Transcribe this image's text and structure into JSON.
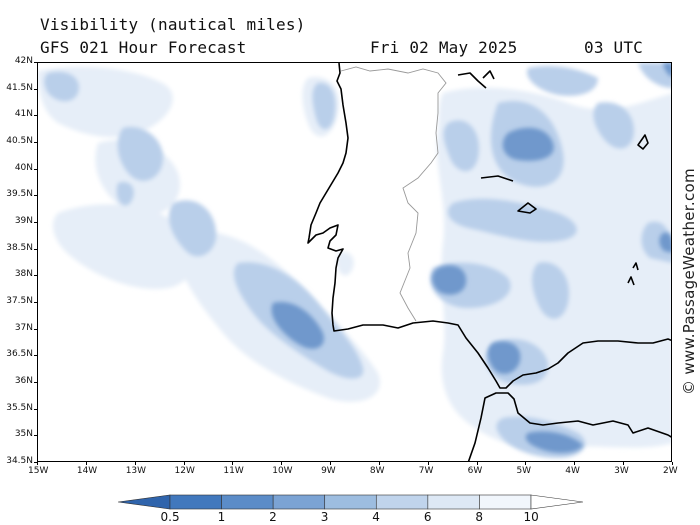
{
  "title": {
    "line1": "Visibility (nautical miles)",
    "line2": "GFS 021 Hour Forecast",
    "valid_date": "Fri 02 May 2025",
    "valid_hour": "03 UTC"
  },
  "map": {
    "lat_labels": [
      "42N",
      "41.5N",
      "41N",
      "40.5N",
      "40N",
      "39.5N",
      "39N",
      "38.5N",
      "38N",
      "37.5N",
      "37N",
      "36.5N",
      "36N",
      "35.5N",
      "35N",
      "34.5N"
    ],
    "lon_labels": [
      "15W",
      "14W",
      "13W",
      "12W",
      "11W",
      "10W",
      "9W",
      "8W",
      "7W",
      "6W",
      "5W",
      "4W",
      "3W",
      "2W"
    ],
    "land_color": "#ffffff",
    "coast_color": "#000000",
    "border_color": "#999999"
  },
  "colorbar": {
    "labels": [
      "0.5",
      "1",
      "2",
      "3",
      "4",
      "6",
      "8",
      "10"
    ],
    "colors": [
      "#2f64ac",
      "#4178bd",
      "#5b8cc8",
      "#7ba3d4",
      "#9dbde0",
      "#c0d4ec",
      "#dde8f5",
      "#f1f6fc",
      "#ffffff"
    ]
  },
  "credit": "© www.PassageWeather.com"
}
